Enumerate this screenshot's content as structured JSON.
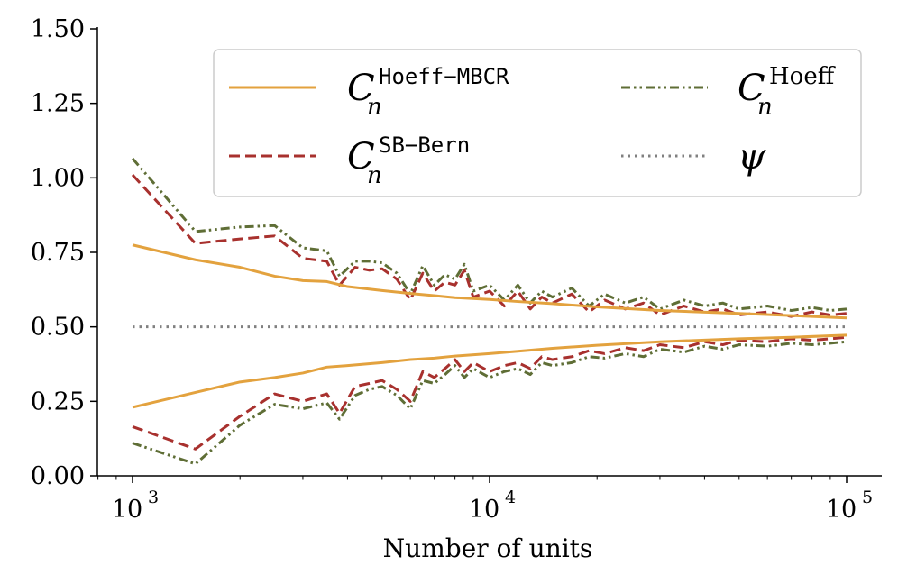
{
  "chart_data": {
    "type": "line",
    "title": "",
    "xlabel": "Number of units",
    "ylabel": "",
    "xscale": "log",
    "xlim": [
      800,
      120000
    ],
    "ylim": [
      0,
      1.5
    ],
    "yticks": [
      0.0,
      0.25,
      0.5,
      0.75,
      1.0,
      1.25,
      1.5
    ],
    "ytick_labels": [
      "0.00",
      "0.25",
      "0.50",
      "0.75",
      "1.00",
      "1.25",
      "1.50"
    ],
    "xticks": [
      1000,
      10000,
      100000
    ],
    "xtick_labels": [
      {
        "base": "10",
        "exp": "3"
      },
      {
        "base": "10",
        "exp": "4"
      },
      {
        "base": "10",
        "exp": "5"
      }
    ],
    "legend_position": "top-right",
    "colors": {
      "mbcr": "#E3A23E",
      "sb_bern": "#A8312E",
      "hoeff": "#5F6E36",
      "psi": "#808080"
    },
    "series": [
      {
        "name": "C_n^Hoeff-MBCR",
        "legend": {
          "main": "C",
          "sub": "n",
          "sup": "Hoeff−MBCR"
        },
        "color_key": "mbcr",
        "style": "solid",
        "upper": {
          "x": [
            1000,
            1500,
            2000,
            2500,
            3000,
            3500,
            4000,
            5000,
            6000,
            7000,
            8000,
            10000,
            12000,
            15000,
            20000,
            30000,
            50000,
            70000,
            100000
          ],
          "y": [
            0.775,
            0.725,
            0.7,
            0.67,
            0.655,
            0.652,
            0.635,
            0.622,
            0.612,
            0.605,
            0.598,
            0.592,
            0.585,
            0.578,
            0.567,
            0.555,
            0.545,
            0.538,
            0.53
          ]
        },
        "lower": {
          "x": [
            1000,
            1500,
            2000,
            2500,
            3000,
            3500,
            4000,
            5000,
            6000,
            7000,
            8000,
            10000,
            12000,
            15000,
            20000,
            30000,
            50000,
            70000,
            100000
          ],
          "y": [
            0.23,
            0.28,
            0.315,
            0.33,
            0.345,
            0.365,
            0.37,
            0.38,
            0.39,
            0.395,
            0.402,
            0.41,
            0.418,
            0.428,
            0.438,
            0.45,
            0.46,
            0.465,
            0.472
          ]
        }
      },
      {
        "name": "C_n^SB-Bern",
        "legend": {
          "main": "C",
          "sub": "n",
          "sup": "SB−Bern"
        },
        "color_key": "sb_bern",
        "style": "dashed",
        "upper": {
          "x": [
            1000,
            1500,
            2000,
            2500,
            3000,
            3500,
            3800,
            4200,
            4600,
            5000,
            5500,
            6000,
            6500,
            7000,
            7500,
            8000,
            8500,
            9000,
            10000,
            11000,
            12000,
            13000,
            14000,
            15000,
            17000,
            19000,
            21000,
            24000,
            27000,
            30000,
            35000,
            40000,
            45000,
            50000,
            60000,
            70000,
            80000,
            90000,
            100000
          ],
          "y": [
            1.01,
            0.78,
            0.795,
            0.805,
            0.73,
            0.72,
            0.64,
            0.7,
            0.69,
            0.695,
            0.66,
            0.59,
            0.68,
            0.62,
            0.65,
            0.64,
            0.69,
            0.6,
            0.62,
            0.57,
            0.62,
            0.56,
            0.6,
            0.58,
            0.61,
            0.55,
            0.59,
            0.56,
            0.58,
            0.54,
            0.57,
            0.55,
            0.56,
            0.54,
            0.55,
            0.535,
            0.55,
            0.54,
            0.545
          ]
        },
        "lower": {
          "x": [
            1000,
            1500,
            2000,
            2500,
            3000,
            3500,
            3800,
            4200,
            4600,
            5000,
            5500,
            6000,
            6500,
            7000,
            7500,
            8000,
            8500,
            9000,
            10000,
            11000,
            12000,
            13000,
            14000,
            15000,
            17000,
            19000,
            21000,
            24000,
            27000,
            30000,
            35000,
            40000,
            45000,
            50000,
            60000,
            70000,
            80000,
            90000,
            100000
          ],
          "y": [
            0.165,
            0.09,
            0.2,
            0.275,
            0.25,
            0.275,
            0.21,
            0.3,
            0.31,
            0.32,
            0.29,
            0.25,
            0.35,
            0.33,
            0.36,
            0.39,
            0.35,
            0.38,
            0.35,
            0.37,
            0.38,
            0.36,
            0.4,
            0.39,
            0.4,
            0.42,
            0.41,
            0.43,
            0.42,
            0.44,
            0.43,
            0.45,
            0.44,
            0.455,
            0.45,
            0.46,
            0.455,
            0.46,
            0.465
          ]
        }
      },
      {
        "name": "C_n^Hoeff",
        "legend": {
          "main": "C",
          "sub": "n",
          "sup": "Hoeff"
        },
        "color_key": "hoeff",
        "style": "dashdot",
        "upper": {
          "x": [
            1000,
            1500,
            2000,
            2500,
            3000,
            3500,
            3800,
            4200,
            4600,
            5000,
            5500,
            6000,
            6500,
            7000,
            7500,
            8000,
            8500,
            9000,
            10000,
            11000,
            12000,
            13000,
            14000,
            15000,
            17000,
            19000,
            21000,
            24000,
            27000,
            30000,
            35000,
            40000,
            45000,
            50000,
            60000,
            70000,
            80000,
            90000,
            100000
          ],
          "y": [
            1.065,
            0.82,
            0.835,
            0.84,
            0.765,
            0.755,
            0.67,
            0.72,
            0.72,
            0.715,
            0.68,
            0.61,
            0.705,
            0.64,
            0.675,
            0.66,
            0.71,
            0.62,
            0.64,
            0.59,
            0.64,
            0.58,
            0.62,
            0.6,
            0.63,
            0.57,
            0.61,
            0.58,
            0.6,
            0.56,
            0.59,
            0.57,
            0.58,
            0.56,
            0.57,
            0.555,
            0.565,
            0.555,
            0.56
          ]
        },
        "lower": {
          "x": [
            1000,
            1500,
            2000,
            2500,
            3000,
            3500,
            3800,
            4200,
            4600,
            5000,
            5500,
            6000,
            6500,
            7000,
            7500,
            8000,
            8500,
            9000,
            10000,
            11000,
            12000,
            13000,
            14000,
            15000,
            17000,
            19000,
            21000,
            24000,
            27000,
            30000,
            35000,
            40000,
            45000,
            50000,
            60000,
            70000,
            80000,
            90000,
            100000
          ],
          "y": [
            0.11,
            0.04,
            0.17,
            0.24,
            0.225,
            0.245,
            0.19,
            0.27,
            0.29,
            0.3,
            0.27,
            0.225,
            0.32,
            0.31,
            0.34,
            0.37,
            0.33,
            0.36,
            0.33,
            0.35,
            0.36,
            0.34,
            0.38,
            0.37,
            0.38,
            0.4,
            0.395,
            0.41,
            0.4,
            0.425,
            0.415,
            0.435,
            0.425,
            0.44,
            0.435,
            0.445,
            0.44,
            0.445,
            0.45
          ]
        }
      },
      {
        "name": "psi",
        "legend": {
          "main": "ψ",
          "sub": "",
          "sup": ""
        },
        "color_key": "psi",
        "style": "dotted",
        "x": [
          1000,
          100000
        ],
        "y": [
          0.5,
          0.5
        ]
      }
    ]
  }
}
